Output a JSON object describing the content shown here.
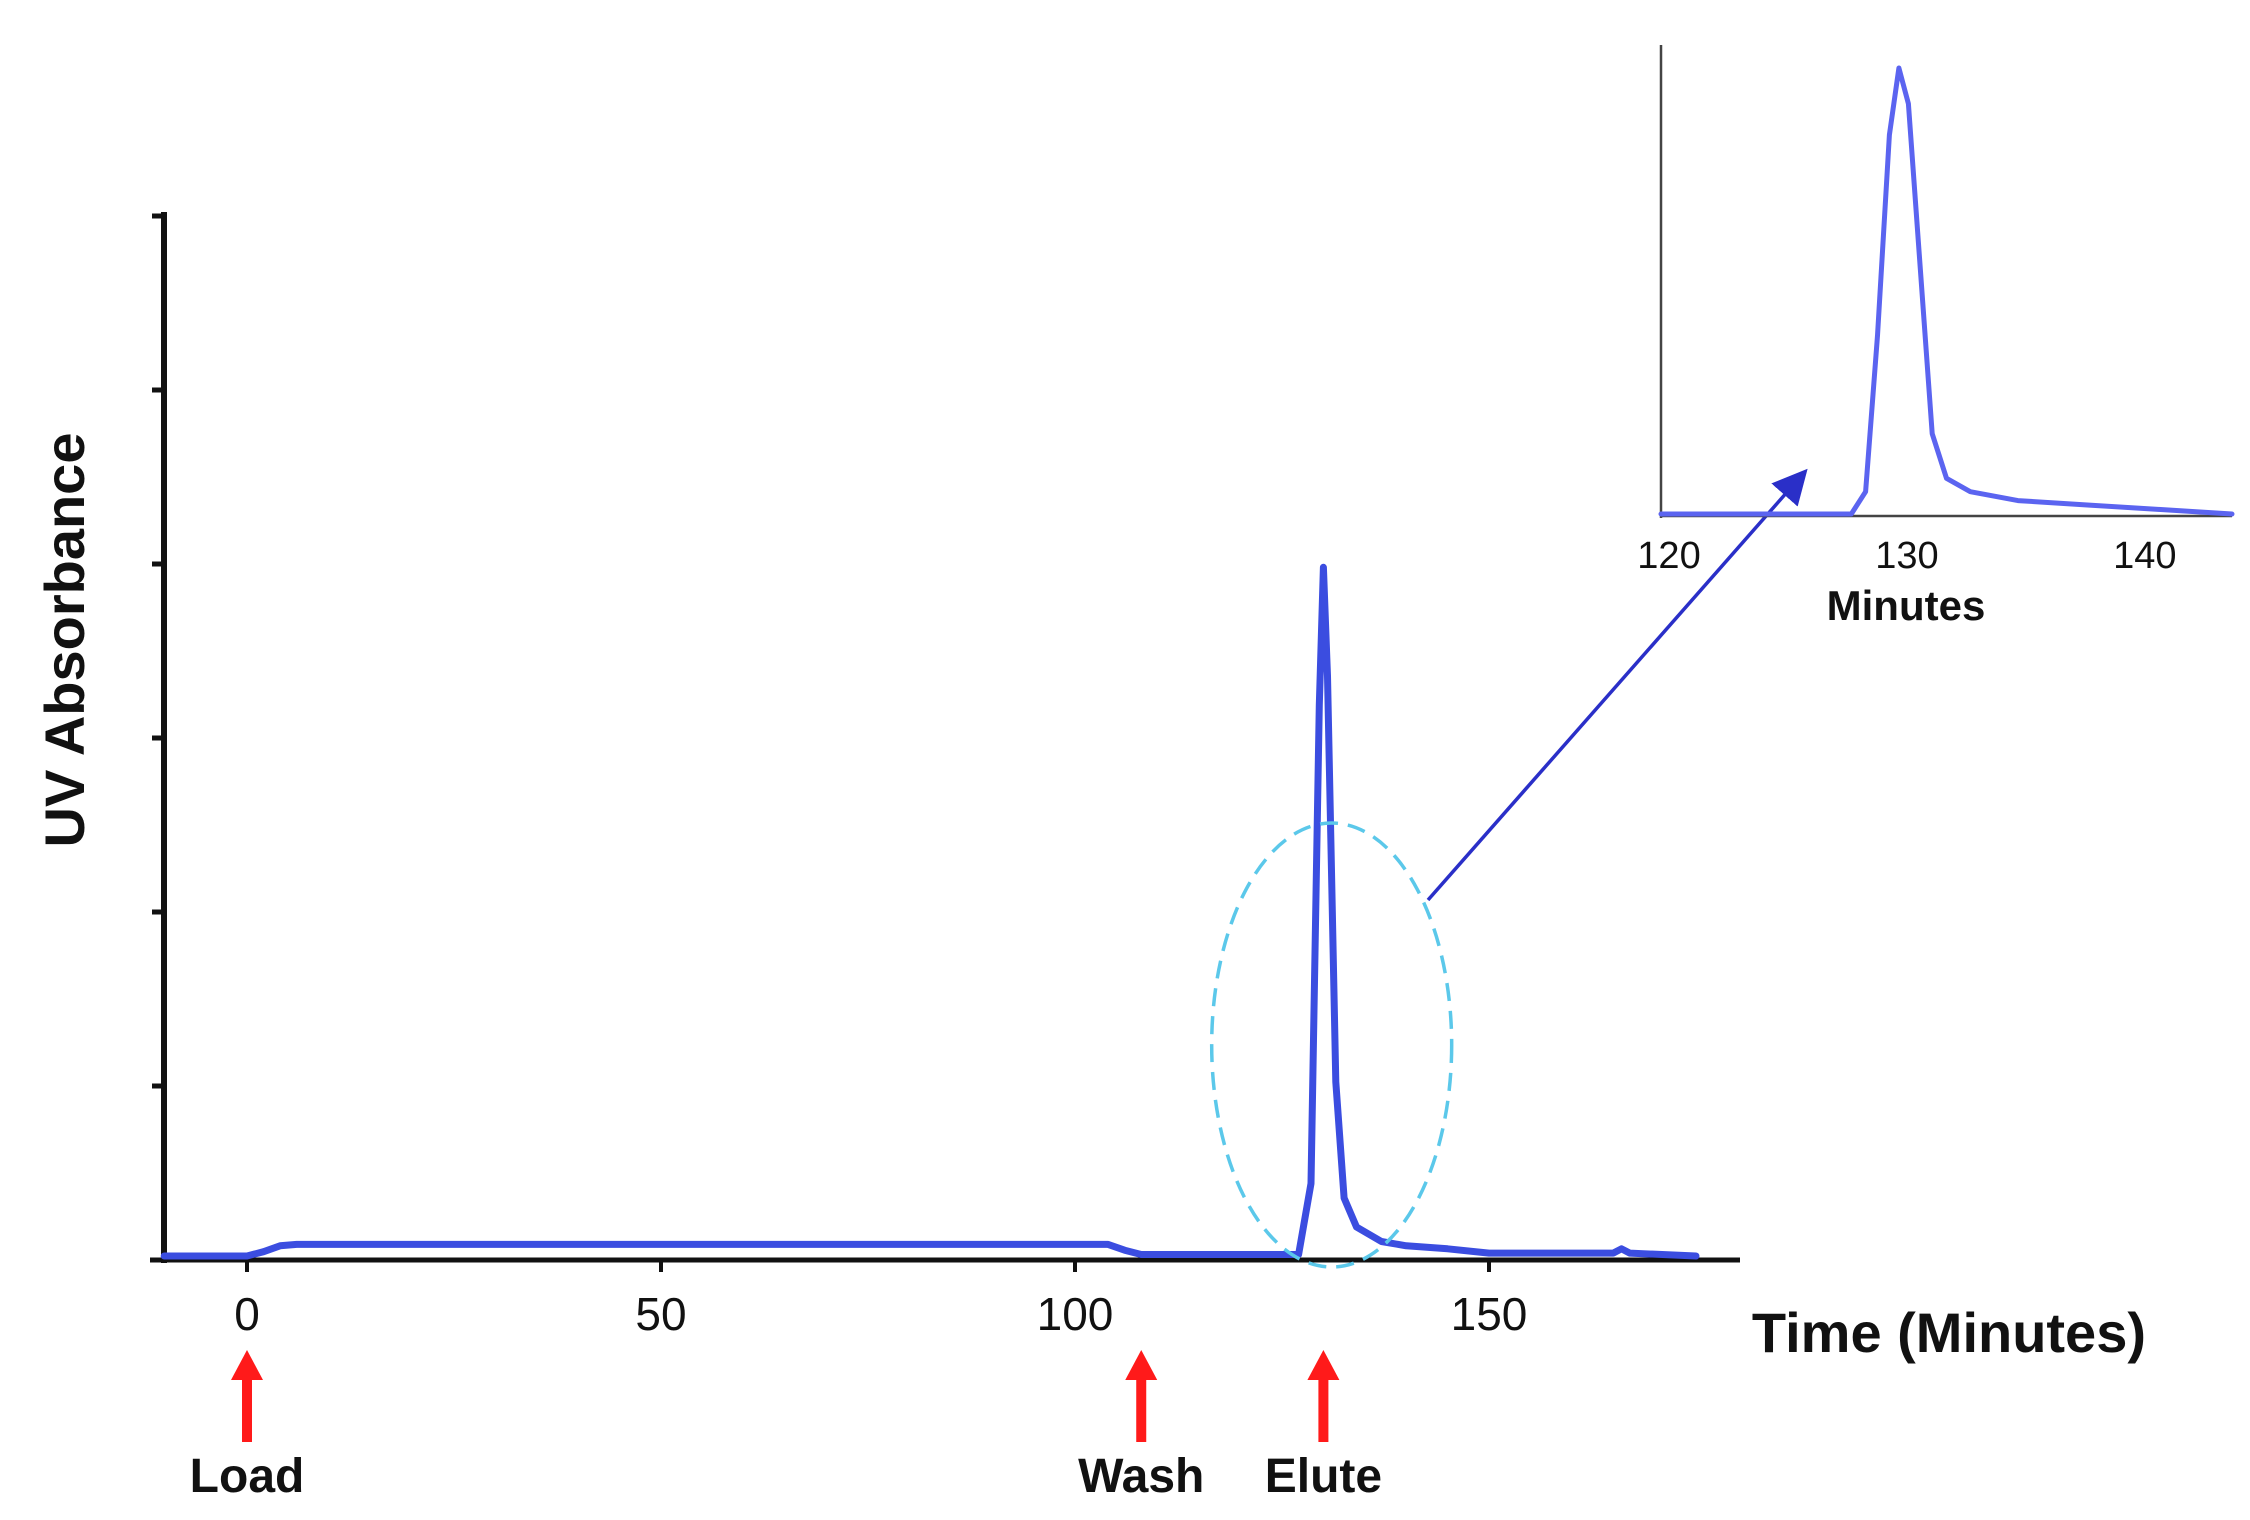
{
  "chart_data": [
    {
      "type": "line",
      "ylabel": "UV Absorbance",
      "xlabel": "Time (Minutes)",
      "x_ticks": [
        "0",
        "50",
        "100",
        "150"
      ],
      "xlim": [
        -10,
        180
      ],
      "ylim": [
        0,
        6
      ],
      "grid": false,
      "series": [
        {
          "color": "#3b4de0",
          "x": [
            -10,
            0,
            2,
            4,
            6,
            50,
            104,
            106,
            108,
            120,
            127,
            128.5,
            129.5,
            130,
            130.5,
            131.5,
            132.5,
            134,
            137,
            140,
            145,
            150,
            160,
            165,
            166,
            167,
            175
          ],
          "y": [
            0,
            0,
            0.03,
            0.07,
            0.08,
            0.08,
            0.08,
            0.04,
            0.01,
            0.01,
            0.01,
            0.5,
            3.8,
            4.75,
            4.0,
            1.2,
            0.4,
            0.2,
            0.1,
            0.07,
            0.05,
            0.02,
            0.02,
            0.02,
            0.05,
            0.02,
            0.0
          ]
        }
      ],
      "annotations": [
        {
          "label": "Load",
          "x": 0,
          "color": "#ff1a1a"
        },
        {
          "label": "Wash",
          "x": 108,
          "color": "#ff1a1a"
        },
        {
          "label": "Elute",
          "x": 130,
          "color": "#ff1a1a"
        }
      ],
      "highlight_ellipse": {
        "x_center": 131,
        "color": "#5bc8ea"
      }
    },
    {
      "type": "line",
      "xlabel": "Minutes",
      "x_ticks": [
        "120",
        "130",
        "140"
      ],
      "xlim": [
        120,
        144
      ],
      "ylim": [
        0,
        1
      ],
      "grid": false,
      "series": [
        {
          "color": "#5b64f0",
          "x": [
            120,
            128,
            128.6,
            129.1,
            129.6,
            130,
            130.4,
            130.9,
            131.4,
            132,
            133,
            135,
            138,
            141,
            144
          ],
          "y": [
            0,
            0,
            0.05,
            0.4,
            0.85,
            1.0,
            0.92,
            0.55,
            0.18,
            0.08,
            0.05,
            0.03,
            0.02,
            0.01,
            0
          ]
        }
      ]
    }
  ]
}
